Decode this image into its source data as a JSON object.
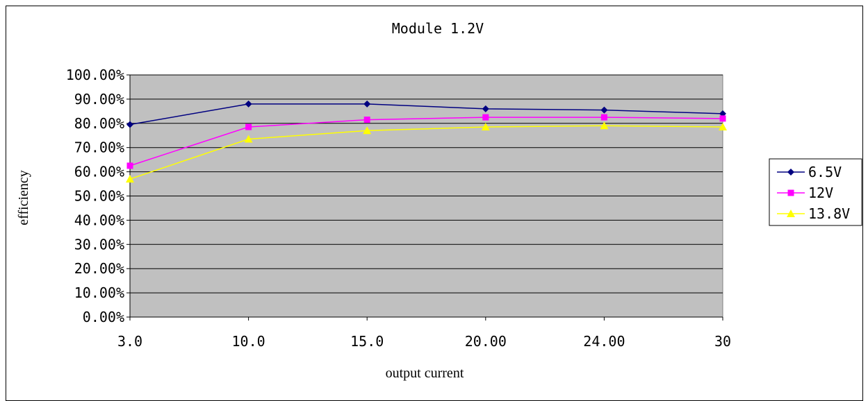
{
  "chart_data": {
    "type": "line",
    "title": "Module 1.2V",
    "xlabel": "output current",
    "ylabel": "efficiency",
    "categories": [
      "3.0",
      "10.0",
      "15.0",
      "20.00",
      "24.00",
      "30"
    ],
    "y_ticks": [
      "0.00%",
      "10.00%",
      "20.00%",
      "30.00%",
      "40.00%",
      "50.00%",
      "60.00%",
      "70.00%",
      "80.00%",
      "90.00%",
      "100.00%"
    ],
    "ylim": [
      0,
      100
    ],
    "grid": true,
    "legend_position": "right",
    "plot_background": "#c0c0c0",
    "series": [
      {
        "name": "6.5V",
        "color": "#000080",
        "marker": "diamond",
        "values": [
          79.5,
          88.0,
          88.0,
          86.0,
          85.5,
          84.0
        ]
      },
      {
        "name": "12V",
        "color": "#ff00ff",
        "marker": "square",
        "values": [
          62.5,
          78.5,
          81.5,
          82.5,
          82.5,
          82.0
        ]
      },
      {
        "name": "13.8V",
        "color": "#ffff00",
        "marker": "triangle",
        "values": [
          57.0,
          73.5,
          77.0,
          78.5,
          79.0,
          78.5
        ]
      }
    ]
  }
}
